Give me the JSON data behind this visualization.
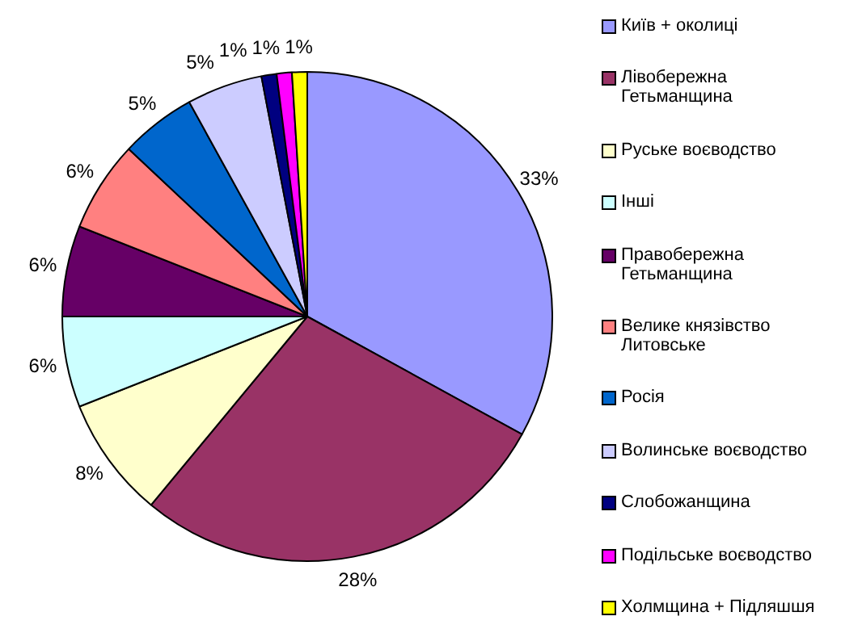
{
  "chart_data": {
    "type": "pie",
    "categories": [
      "Київ + околиці",
      "Лівобережна Гетьманщина",
      "Руське воєводство",
      "Інші",
      "Правобережна Гетьманщина",
      "Велике князівство Литовське",
      "Росія",
      "Волинське воєводство",
      "Слобожанщина",
      "Подільське воєводство",
      "Холмщина + Підляшшя"
    ],
    "values": [
      33,
      28,
      8,
      6,
      6,
      6,
      5,
      5,
      1,
      1,
      1
    ],
    "value_labels": [
      "33%",
      "28%",
      "8%",
      "6%",
      "6%",
      "6%",
      "5%",
      "5%",
      "1%",
      "1%",
      "1%"
    ],
    "colors": [
      "#9999ff",
      "#993366",
      "#ffffcc",
      "#ccffff",
      "#660066",
      "#ff8080",
      "#0066cc",
      "#ccccff",
      "#000080",
      "#ff00ff",
      "#ffff00"
    ],
    "legend": "right"
  }
}
